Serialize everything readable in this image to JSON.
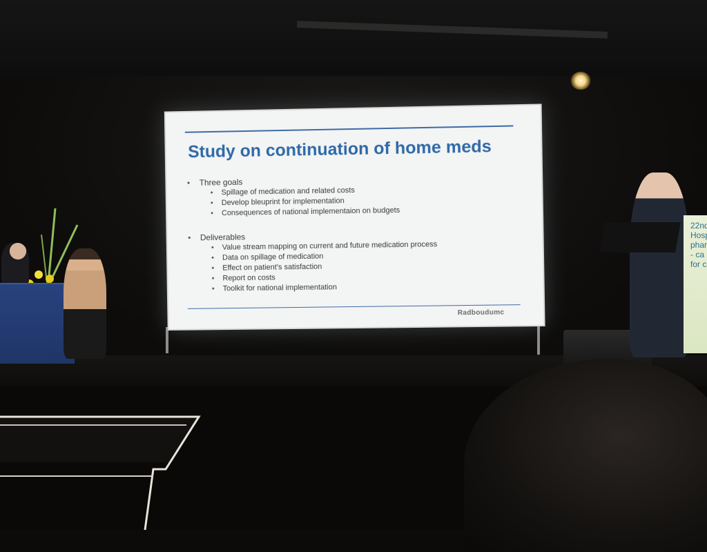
{
  "slide": {
    "title": "Study on continuation of home meds",
    "sections": [
      {
        "heading": "Three goals",
        "items": [
          "Spillage of medication and related costs",
          "Develop bleuprint for implementation",
          "Consequences of national implementaion on budgets"
        ]
      },
      {
        "heading": "Deliverables",
        "items": [
          "Value stream mapping on current and future medication process",
          "Data on spillage of medication",
          "Effect on patient’s satisfaction",
          "Report on costs",
          "Toolkit for national implementation"
        ]
      }
    ],
    "logo": "Radboudumc"
  },
  "podium": {
    "visible_text": "22nd C\nHosp\nphar\n- ca\nfor c"
  },
  "colors": {
    "slide_title": "#2f6aa8",
    "slide_rule": "#3d6aa6",
    "slide_background": "#f3f4f4",
    "desk_cloth": "#28427e",
    "podium_banner": "#dbe6c2"
  }
}
